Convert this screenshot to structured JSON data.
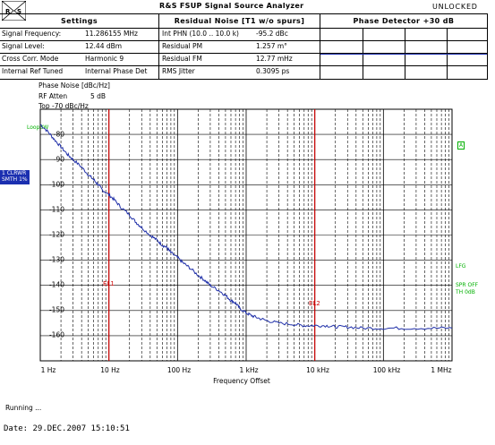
{
  "header": {
    "title": "R&S FSUP Signal Source Analyzer",
    "status": "UNLOCKED",
    "columns": [
      "Settings",
      "Residual Noise [T1 w/o spurs]",
      "Phase Detector +30 dB"
    ]
  },
  "settings_rows": [
    {
      "label": "Signal Frequency:",
      "value": "11.286155 MHz",
      "rn_label": "Int PHN (10.0 .. 10.0 k)",
      "rn_value": "-95.2 dBc"
    },
    {
      "label": "Signal Level:",
      "value": "12.44 dBm",
      "rn_label": "Residual PM",
      "rn_value": "1.257 m°"
    },
    {
      "label": "Cross Corr. Mode",
      "value": "Harmonic 9",
      "rn_label": "Residual FM",
      "rn_value": "12.77 mHz"
    },
    {
      "label": "Internal Ref Tuned",
      "value": "Internal Phase Det",
      "rn_label": "RMS Jitter",
      "rn_value": "0.3095 ps"
    }
  ],
  "plot_info": {
    "line1": "Phase Noise [dBc/Hz]",
    "rf_atten_label": "RF Atten",
    "rf_atten_value": "5 dB",
    "top": "Top -70 dBc/Hz"
  },
  "side_labels": {
    "loop_bw": "LoopBW",
    "trace_badge_1": "1 CLRWR",
    "trace_badge_2": "SMTH 1%",
    "a_marker": "A",
    "lfg": "LFG",
    "spr_off": "SPR OFF",
    "th": "TH 0dB"
  },
  "markers": {
    "el1": "EL1",
    "el2": "EL2"
  },
  "axis": {
    "xlabel": "Frequency Offset"
  },
  "footer": {
    "running": "Running ...",
    "date": "Date: 29.DEC.2007   15:10:51"
  },
  "colors": {
    "trace": "#1f2fa8",
    "markers": "#cc0000",
    "blue_line": "#1b2fb0",
    "green": "#00b000"
  },
  "chart_data": {
    "type": "line",
    "xscale": "log",
    "xlim": [
      1,
      1000000
    ],
    "ylim": [
      -170,
      -70
    ],
    "x_ticks": [
      {
        "v": 1,
        "label": "1 Hz"
      },
      {
        "v": 10,
        "label": "10 Hz"
      },
      {
        "v": 100,
        "label": "100 Hz"
      },
      {
        "v": 1000,
        "label": "1 kHz"
      },
      {
        "v": 10000,
        "label": "10 kHz"
      },
      {
        "v": 100000,
        "label": "100 kHz"
      },
      {
        "v": 1000000,
        "label": "1 MHz"
      }
    ],
    "y_ticks": [
      -80,
      -90,
      -100,
      -110,
      -120,
      -130,
      -140,
      -150,
      -160
    ],
    "grid": true,
    "markers_x": [
      10,
      10000
    ],
    "series": [
      {
        "x": [
          1,
          1.3,
          1.6,
          2,
          2.5,
          3,
          4,
          5,
          6,
          7,
          8,
          10,
          12,
          15,
          20,
          25,
          30,
          40,
          50,
          60,
          70,
          80,
          100,
          120,
          150,
          200,
          250,
          300,
          400,
          500,
          600,
          700,
          800,
          1000,
          1200,
          1500,
          2000,
          3000,
          5000,
          7000,
          10000,
          15000,
          20000,
          30000,
          50000,
          100000,
          200000,
          500000,
          1000000
        ],
        "y": [
          -76,
          -79,
          -82,
          -85,
          -88,
          -90,
          -93,
          -96,
          -98,
          -100,
          -102,
          -104,
          -106,
          -109,
          -112,
          -115,
          -117,
          -120,
          -122,
          -124,
          -125,
          -127,
          -129,
          -131,
          -133,
          -136,
          -138,
          -140,
          -142,
          -144,
          -146,
          -147,
          -149,
          -151,
          -152,
          -153,
          -154,
          -155,
          -155.5,
          -156,
          -156,
          -156,
          -156.5,
          -156.5,
          -157,
          -157,
          -157,
          -157,
          -157
        ]
      }
    ]
  }
}
